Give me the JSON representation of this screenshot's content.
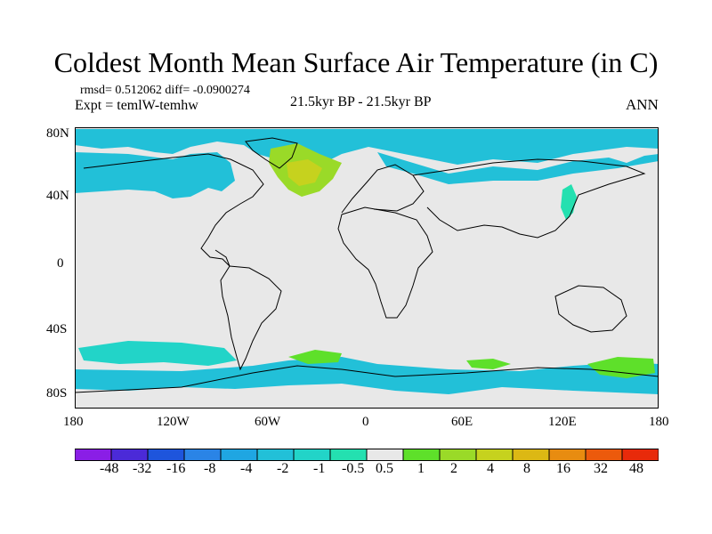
{
  "title": "Coldest Month Mean Surface Air Temperature (in C)",
  "stats": {
    "rmsd_label": "rmsd= 0.512062",
    "diff_label": "diff= -0.0900274"
  },
  "experiment_label": "Expt = temlW-temhw",
  "period_label": "21.5kyr BP - 21.5kyr BP",
  "season_label": "ANN",
  "latitude_ticks": [
    "80N",
    "40N",
    "0",
    "40S",
    "80S"
  ],
  "longitude_ticks": [
    "180",
    "120W",
    "60W",
    "0",
    "60E",
    "120E",
    "180"
  ],
  "colorbar": {
    "labels": [
      "-48",
      "-32",
      "-16",
      "-8",
      "-4",
      "-2",
      "-1",
      "-0.5",
      "0.5",
      "1",
      "2",
      "4",
      "8",
      "16",
      "32",
      "48"
    ],
    "colors": [
      "#8a1ee6",
      "#4b2ad8",
      "#1e55dc",
      "#2a84e6",
      "#1fa6e2",
      "#22c0d8",
      "#22d4c8",
      "#24e0b0",
      "#e8e8e8",
      "#5ee02a",
      "#9ada28",
      "#c6d21e",
      "#dcb814",
      "#e88c10",
      "#ec5a0c",
      "#e82a0a"
    ]
  },
  "map": {
    "background_color": "#e8e8e8",
    "coast_color": "#000000"
  }
}
